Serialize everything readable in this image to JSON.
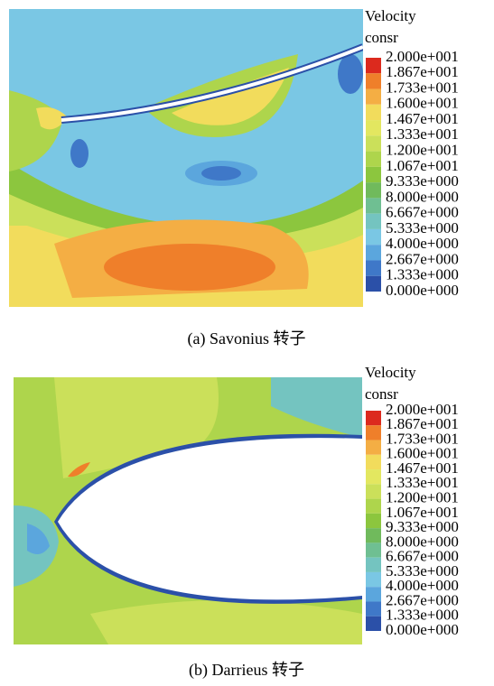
{
  "panels": [
    {
      "legend_title": "Velocity",
      "legend_subtitle": "consr",
      "legend_labels": [
        "2.000e+001",
        "1.867e+001",
        "1.733e+001",
        "1.600e+001",
        "1.467e+001",
        "1.333e+001",
        "1.200e+001",
        "1.067e+001",
        "9.333e+000",
        "8.000e+000",
        "6.667e+000",
        "5.333e+000",
        "4.000e+000",
        "2.667e+000",
        "1.333e+000",
        "0.000e+000"
      ],
      "caption": "(a) Savonius 转子"
    },
    {
      "legend_title": "Velocity",
      "legend_subtitle": "consr",
      "legend_labels": [
        "2.000e+001",
        "1.867e+001",
        "1.733e+001",
        "1.600e+001",
        "1.467e+001",
        "1.333e+001",
        "1.200e+001",
        "1.067e+001",
        "9.333e+000",
        "8.000e+000",
        "6.667e+000",
        "5.333e+000",
        "4.000e+000",
        "2.667e+000",
        "1.333e+000",
        "0.000e+000"
      ],
      "caption": "(b) Darrieus 转子"
    }
  ],
  "legend_colors": [
    "#dc2a1e",
    "#ef7f2a",
    "#f4ae44",
    "#f2dc5c",
    "#e3e760",
    "#cbe05a",
    "#aed54c",
    "#8cc63e",
    "#70ba5c",
    "#6fbf92",
    "#74c4c0",
    "#7ac7e4",
    "#5ba6dd",
    "#3f78c8",
    "#2b50a8"
  ]
}
